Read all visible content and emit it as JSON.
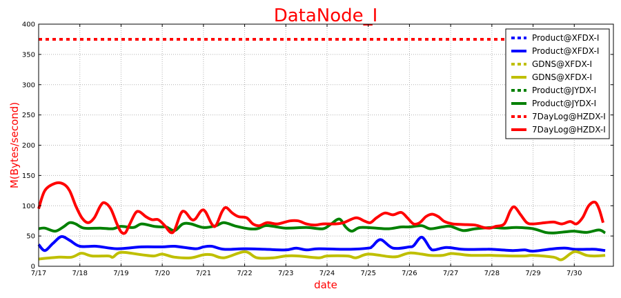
{
  "chart_data": {
    "type": "line",
    "title": "DataNode_I",
    "xlabel": "date",
    "ylabel": "M(Bytes/second)",
    "title_color": "#ff0000",
    "label_color": "#ff0000",
    "x_ticks": [
      "7/17",
      "7/18",
      "7/19",
      "7/20",
      "7/21",
      "7/22",
      "7/23",
      "7/24",
      "7/25",
      "7/26",
      "7/27",
      "7/28",
      "7/29",
      "7/30"
    ],
    "xlim": [
      0,
      13.95
    ],
    "ylim": [
      0,
      400
    ],
    "y_ticks": [
      0,
      50,
      100,
      150,
      200,
      250,
      300,
      350,
      400
    ],
    "grid": true,
    "legend_position": "top-right",
    "series": [
      {
        "name": "Product@XFDX-I",
        "color": "#0000ff",
        "style": "dotted",
        "points": [
          [
            0,
            375
          ],
          [
            11.95,
            375
          ]
        ]
      },
      {
        "name": "Product@XFDX-I",
        "color": "#0000ff",
        "style": "solid",
        "points": [
          [
            0,
            36
          ],
          [
            0.15,
            26
          ],
          [
            0.35,
            38
          ],
          [
            0.55,
            49
          ],
          [
            0.75,
            43
          ],
          [
            1,
            33
          ],
          [
            1.4,
            33
          ],
          [
            1.9,
            29
          ],
          [
            2.5,
            32
          ],
          [
            3,
            32
          ],
          [
            3.3,
            33
          ],
          [
            3.8,
            29
          ],
          [
            4,
            32
          ],
          [
            4.2,
            33
          ],
          [
            4.5,
            28
          ],
          [
            5,
            29
          ],
          [
            5.5,
            28
          ],
          [
            6,
            27
          ],
          [
            6.25,
            30
          ],
          [
            6.5,
            27
          ],
          [
            6.8,
            29
          ],
          [
            7.5,
            28
          ],
          [
            8,
            30
          ],
          [
            8.1,
            33
          ],
          [
            8.3,
            44
          ],
          [
            8.6,
            30
          ],
          [
            9,
            32
          ],
          [
            9.1,
            34
          ],
          [
            9.3,
            48
          ],
          [
            9.5,
            30
          ],
          [
            9.6,
            27
          ],
          [
            9.9,
            31
          ],
          [
            10.3,
            28
          ],
          [
            10.8,
            28
          ],
          [
            11,
            28
          ],
          [
            11.5,
            26
          ],
          [
            11.8,
            27
          ],
          [
            12,
            25
          ],
          [
            12.5,
            29
          ],
          [
            12.8,
            30
          ],
          [
            13,
            28
          ],
          [
            13.3,
            28
          ],
          [
            13.5,
            28
          ],
          [
            13.75,
            26
          ]
        ]
      },
      {
        "name": "GDNS@XFDX-I",
        "color": "#bfbf00",
        "style": "dotted",
        "points": []
      },
      {
        "name": "GDNS@XFDX-I",
        "color": "#bfbf00",
        "style": "solid",
        "points": [
          [
            0,
            12
          ],
          [
            0.5,
            15
          ],
          [
            0.8,
            15
          ],
          [
            1,
            21
          ],
          [
            1.1,
            21
          ],
          [
            1.3,
            17
          ],
          [
            1.7,
            17
          ],
          [
            1.8,
            15
          ],
          [
            2,
            23
          ],
          [
            2.5,
            19
          ],
          [
            2.8,
            17
          ],
          [
            3,
            20
          ],
          [
            3.3,
            15
          ],
          [
            3.7,
            14
          ],
          [
            4,
            19
          ],
          [
            4.2,
            19
          ],
          [
            4.5,
            14
          ],
          [
            5,
            24
          ],
          [
            5.3,
            14
          ],
          [
            5.7,
            14
          ],
          [
            6,
            17
          ],
          [
            6.3,
            17
          ],
          [
            6.8,
            14
          ],
          [
            7,
            17
          ],
          [
            7.5,
            17
          ],
          [
            7.7,
            14
          ],
          [
            8,
            20
          ],
          [
            8.5,
            16
          ],
          [
            8.7,
            16
          ],
          [
            9,
            22
          ],
          [
            9.3,
            20
          ],
          [
            9.5,
            18
          ],
          [
            9.8,
            18
          ],
          [
            10,
            21
          ],
          [
            10.2,
            20
          ],
          [
            10.5,
            18
          ],
          [
            11,
            18
          ],
          [
            11.5,
            17
          ],
          [
            11.8,
            17
          ],
          [
            12,
            18
          ],
          [
            12.5,
            15
          ],
          [
            12.7,
            11
          ],
          [
            13,
            24
          ],
          [
            13.3,
            18
          ],
          [
            13.5,
            17
          ],
          [
            13.75,
            18
          ]
        ]
      },
      {
        "name": "Product@JYDX-I",
        "color": "#008000",
        "style": "dotted",
        "points": []
      },
      {
        "name": "Product@JYDX-I",
        "color": "#008000",
        "style": "solid",
        "points": [
          [
            0,
            62
          ],
          [
            0.15,
            63
          ],
          [
            0.4,
            58
          ],
          [
            0.6,
            65
          ],
          [
            0.75,
            72
          ],
          [
            0.9,
            70
          ],
          [
            1.1,
            63
          ],
          [
            1.5,
            63
          ],
          [
            1.8,
            62
          ],
          [
            2,
            66
          ],
          [
            2.3,
            64
          ],
          [
            2.5,
            70
          ],
          [
            2.8,
            66
          ],
          [
            3,
            65
          ],
          [
            3.1,
            65
          ],
          [
            3.3,
            59
          ],
          [
            3.5,
            70
          ],
          [
            3.7,
            70
          ],
          [
            4,
            64
          ],
          [
            4.3,
            67
          ],
          [
            4.5,
            72
          ],
          [
            4.8,
            66
          ],
          [
            5.1,
            62
          ],
          [
            5.3,
            62
          ],
          [
            5.5,
            67
          ],
          [
            5.7,
            66
          ],
          [
            6,
            63
          ],
          [
            6.5,
            64
          ],
          [
            6.9,
            62
          ],
          [
            7.1,
            70
          ],
          [
            7.3,
            78
          ],
          [
            7.45,
            65
          ],
          [
            7.6,
            58
          ],
          [
            7.8,
            64
          ],
          [
            8.2,
            63
          ],
          [
            8.5,
            62
          ],
          [
            8.8,
            65
          ],
          [
            9,
            65
          ],
          [
            9.3,
            67
          ],
          [
            9.5,
            62
          ],
          [
            9.8,
            65
          ],
          [
            10,
            66
          ],
          [
            10.3,
            59
          ],
          [
            10.6,
            62
          ],
          [
            11,
            64
          ],
          [
            11.3,
            63
          ],
          [
            11.6,
            64
          ],
          [
            12,
            62
          ],
          [
            12.3,
            56
          ],
          [
            12.5,
            55
          ],
          [
            12.8,
            57
          ],
          [
            13,
            58
          ],
          [
            13.3,
            56
          ],
          [
            13.6,
            60
          ],
          [
            13.75,
            55
          ]
        ]
      },
      {
        "name": "7DayLog@HZDX-I",
        "color": "#ff0000",
        "style": "dotted",
        "points": [
          [
            0,
            375
          ],
          [
            11.95,
            375
          ]
        ]
      },
      {
        "name": "7DayLog@HZDX-I",
        "color": "#ff0000",
        "style": "solid",
        "points": [
          [
            0,
            95
          ],
          [
            0.15,
            125
          ],
          [
            0.4,
            137
          ],
          [
            0.6,
            136
          ],
          [
            0.75,
            125
          ],
          [
            0.9,
            100
          ],
          [
            1.05,
            80
          ],
          [
            1.2,
            72
          ],
          [
            1.35,
            80
          ],
          [
            1.5,
            100
          ],
          [
            1.6,
            105
          ],
          [
            1.75,
            95
          ],
          [
            1.9,
            70
          ],
          [
            2,
            57
          ],
          [
            2.1,
            55
          ],
          [
            2.2,
            68
          ],
          [
            2.35,
            88
          ],
          [
            2.45,
            90
          ],
          [
            2.6,
            82
          ],
          [
            2.75,
            77
          ],
          [
            2.9,
            77
          ],
          [
            3.05,
            68
          ],
          [
            3.2,
            56
          ],
          [
            3.3,
            60
          ],
          [
            3.45,
            87
          ],
          [
            3.55,
            90
          ],
          [
            3.7,
            78
          ],
          [
            3.8,
            78
          ],
          [
            3.95,
            92
          ],
          [
            4.05,
            90
          ],
          [
            4.2,
            70
          ],
          [
            4.3,
            67
          ],
          [
            4.45,
            90
          ],
          [
            4.55,
            97
          ],
          [
            4.7,
            88
          ],
          [
            4.85,
            82
          ],
          [
            5.05,
            80
          ],
          [
            5.2,
            70
          ],
          [
            5.35,
            67
          ],
          [
            5.55,
            72
          ],
          [
            5.8,
            70
          ],
          [
            6.1,
            75
          ],
          [
            6.3,
            75
          ],
          [
            6.5,
            70
          ],
          [
            6.7,
            68
          ],
          [
            6.9,
            70
          ],
          [
            7.2,
            70
          ],
          [
            7.4,
            72
          ],
          [
            7.7,
            80
          ],
          [
            7.9,
            75
          ],
          [
            8.05,
            72
          ],
          [
            8.2,
            80
          ],
          [
            8.4,
            88
          ],
          [
            8.6,
            85
          ],
          [
            8.8,
            89
          ],
          [
            8.95,
            80
          ],
          [
            9.1,
            70
          ],
          [
            9.25,
            72
          ],
          [
            9.4,
            82
          ],
          [
            9.55,
            86
          ],
          [
            9.7,
            82
          ],
          [
            9.85,
            74
          ],
          [
            10.05,
            70
          ],
          [
            10.3,
            69
          ],
          [
            10.6,
            68
          ],
          [
            10.8,
            64
          ],
          [
            10.95,
            63
          ],
          [
            11.1,
            66
          ],
          [
            11.3,
            70
          ],
          [
            11.45,
            92
          ],
          [
            11.55,
            98
          ],
          [
            11.7,
            85
          ],
          [
            11.85,
            72
          ],
          [
            12,
            70
          ],
          [
            12.3,
            72
          ],
          [
            12.5,
            73
          ],
          [
            12.7,
            70
          ],
          [
            12.9,
            74
          ],
          [
            13.05,
            70
          ],
          [
            13.2,
            80
          ],
          [
            13.35,
            100
          ],
          [
            13.5,
            106
          ],
          [
            13.6,
            95
          ],
          [
            13.7,
            72
          ]
        ]
      }
    ]
  }
}
